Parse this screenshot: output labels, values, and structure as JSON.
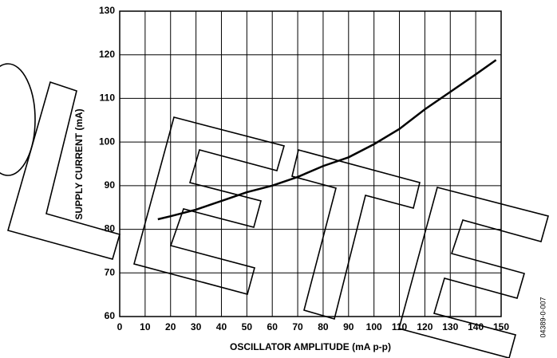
{
  "chart_data": {
    "type": "line",
    "x": [
      15,
      20,
      30,
      40,
      50,
      60,
      70,
      80,
      90,
      100,
      110,
      120,
      130,
      140,
      148
    ],
    "series": [
      {
        "color": "#000000",
        "values": [
          82.3,
          83,
          84.5,
          86.5,
          88.5,
          90,
          92,
          94.5,
          96.5,
          99.5,
          103,
          107.5,
          111.5,
          115.5,
          118.8
        ]
      }
    ],
    "xlim": [
      0,
      150
    ],
    "xticks": [
      0,
      10,
      20,
      30,
      40,
      50,
      60,
      70,
      80,
      90,
      100,
      110,
      120,
      130,
      140,
      150
    ],
    "ylim": [
      60,
      130
    ],
    "yticks": [
      60,
      70,
      80,
      90,
      100,
      110,
      120,
      130
    ],
    "grid": true,
    "xlabel": "OSCILLATOR AMPLITUDE (mA p-p)",
    "ylabel": "SUPPLY CURRENT (mA)",
    "annotation": "04389-0-007"
  }
}
